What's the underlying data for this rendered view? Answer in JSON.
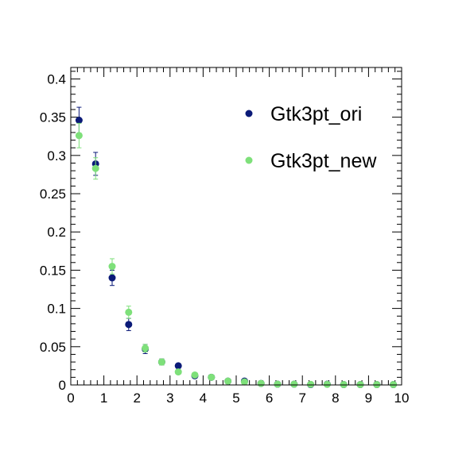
{
  "chart_data": {
    "type": "scatter",
    "title": "",
    "xlabel": "",
    "ylabel": "",
    "xlim": [
      0,
      10
    ],
    "ylim": [
      0,
      0.415
    ],
    "grid": false,
    "legend_position": "top-right",
    "x_ticks": [
      {
        "value": 0,
        "label": "0"
      },
      {
        "value": 1,
        "label": "1"
      },
      {
        "value": 2,
        "label": "2"
      },
      {
        "value": 3,
        "label": "3"
      },
      {
        "value": 4,
        "label": "4"
      },
      {
        "value": 5,
        "label": "5"
      },
      {
        "value": 6,
        "label": "6"
      },
      {
        "value": 7,
        "label": "7"
      },
      {
        "value": 8,
        "label": "8"
      },
      {
        "value": 9,
        "label": "9"
      },
      {
        "value": 10,
        "label": "10"
      }
    ],
    "y_ticks": [
      {
        "value": 0,
        "label": "0"
      },
      {
        "value": 0.05,
        "label": "0.05"
      },
      {
        "value": 0.1,
        "label": "0.1"
      },
      {
        "value": 0.15,
        "label": "0.15"
      },
      {
        "value": 0.2,
        "label": "0.2"
      },
      {
        "value": 0.25,
        "label": "0.25"
      },
      {
        "value": 0.3,
        "label": "0.3"
      },
      {
        "value": 0.35,
        "label": "0.35"
      },
      {
        "value": 0.4,
        "label": "0.4"
      }
    ],
    "series": [
      {
        "name": "Gtk3pt_ori",
        "color": "#0b1a78",
        "points": [
          {
            "x": 0.25,
            "y": 0.346,
            "err": 0.017
          },
          {
            "x": 0.75,
            "y": 0.289,
            "err": 0.015
          },
          {
            "x": 1.25,
            "y": 0.14,
            "err": 0.01
          },
          {
            "x": 1.75,
            "y": 0.079,
            "err": 0.008
          },
          {
            "x": 2.25,
            "y": 0.047,
            "err": 0.006
          },
          {
            "x": 2.75,
            "y": 0.03,
            "err": 0.004
          },
          {
            "x": 3.25,
            "y": 0.025,
            "err": 0.003
          },
          {
            "x": 3.75,
            "y": 0.012,
            "err": 0.002
          },
          {
            "x": 4.25,
            "y": 0.01,
            "err": 0.002
          },
          {
            "x": 4.75,
            "y": 0.005,
            "err": 0.001
          },
          {
            "x": 5.25,
            "y": 0.005,
            "err": 0.001
          },
          {
            "x": 5.75,
            "y": 0.002,
            "err": 0.001
          },
          {
            "x": 6.25,
            "y": 0.001,
            "err": 0.0005
          },
          {
            "x": 6.75,
            "y": 0.001,
            "err": 0.0005
          },
          {
            "x": 7.25,
            "y": 0.0005,
            "err": 0.0005
          },
          {
            "x": 7.75,
            "y": 0.001,
            "err": 0.0005
          },
          {
            "x": 8.25,
            "y": 0.0005,
            "err": 0.0005
          },
          {
            "x": 8.75,
            "y": 0.0005,
            "err": 0.0005
          },
          {
            "x": 9.25,
            "y": 0.0005,
            "err": 0.0005
          },
          {
            "x": 9.75,
            "y": 0.0005,
            "err": 0.0005
          }
        ]
      },
      {
        "name": "Gtk3pt_new",
        "color": "#7ee07a",
        "points": [
          {
            "x": 0.25,
            "y": 0.326,
            "err": 0.016
          },
          {
            "x": 0.75,
            "y": 0.283,
            "err": 0.014
          },
          {
            "x": 1.25,
            "y": 0.155,
            "err": 0.01
          },
          {
            "x": 1.75,
            "y": 0.095,
            "err": 0.008
          },
          {
            "x": 2.25,
            "y": 0.048,
            "err": 0.005
          },
          {
            "x": 2.75,
            "y": 0.03,
            "err": 0.004
          },
          {
            "x": 3.25,
            "y": 0.017,
            "err": 0.003
          },
          {
            "x": 3.75,
            "y": 0.013,
            "err": 0.002
          },
          {
            "x": 4.25,
            "y": 0.01,
            "err": 0.002
          },
          {
            "x": 4.75,
            "y": 0.005,
            "err": 0.001
          },
          {
            "x": 5.25,
            "y": 0.004,
            "err": 0.001
          },
          {
            "x": 5.75,
            "y": 0.002,
            "err": 0.001
          },
          {
            "x": 6.25,
            "y": 0.001,
            "err": 0.0005
          },
          {
            "x": 6.75,
            "y": 0.001,
            "err": 0.0005
          },
          {
            "x": 7.25,
            "y": 0.0008,
            "err": 0.0005
          },
          {
            "x": 7.75,
            "y": 0.0008,
            "err": 0.0005
          },
          {
            "x": 8.25,
            "y": 0.0005,
            "err": 0.0005
          },
          {
            "x": 8.75,
            "y": 0.0005,
            "err": 0.0005
          },
          {
            "x": 9.25,
            "y": 0.0005,
            "err": 0.0005
          },
          {
            "x": 9.75,
            "y": 0.0005,
            "err": 0.0005
          }
        ]
      }
    ]
  }
}
